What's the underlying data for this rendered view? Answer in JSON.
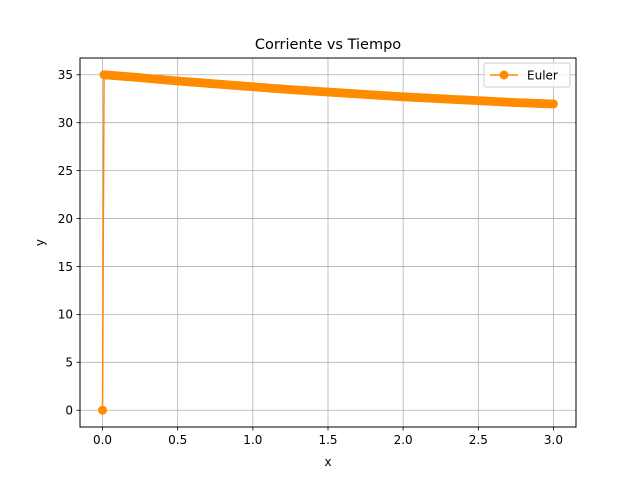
{
  "chart_data": {
    "type": "line",
    "title": "Corriente vs Tiempo",
    "xlabel": "x",
    "ylabel": "y",
    "xlim": [
      -0.15,
      3.15
    ],
    "ylim": [
      -1.75,
      36.75
    ],
    "xticks": [
      0.0,
      0.5,
      1.0,
      1.5,
      2.0,
      2.5,
      3.0
    ],
    "xtick_labels": [
      "0.0",
      "0.5",
      "1.0",
      "1.5",
      "2.0",
      "2.5",
      "3.0"
    ],
    "yticks": [
      0,
      5,
      10,
      15,
      20,
      25,
      30,
      35
    ],
    "ytick_labels": [
      "0",
      "5",
      "10",
      "15",
      "20",
      "25",
      "30",
      "35"
    ],
    "grid": true,
    "legend": "top-right",
    "series": [
      {
        "name": "Euler",
        "color": "#ff8c00",
        "marker": "circle",
        "x": [
          0.0,
          0.01,
          0.25,
          0.5,
          0.75,
          1.0,
          1.25,
          1.5,
          1.75,
          2.0,
          2.25,
          2.5,
          2.75,
          3.0
        ],
        "y": [
          0.0,
          35.0,
          34.7,
          34.35,
          34.05,
          33.75,
          33.45,
          33.2,
          32.95,
          32.7,
          32.5,
          32.3,
          32.1,
          31.95
        ]
      }
    ]
  }
}
